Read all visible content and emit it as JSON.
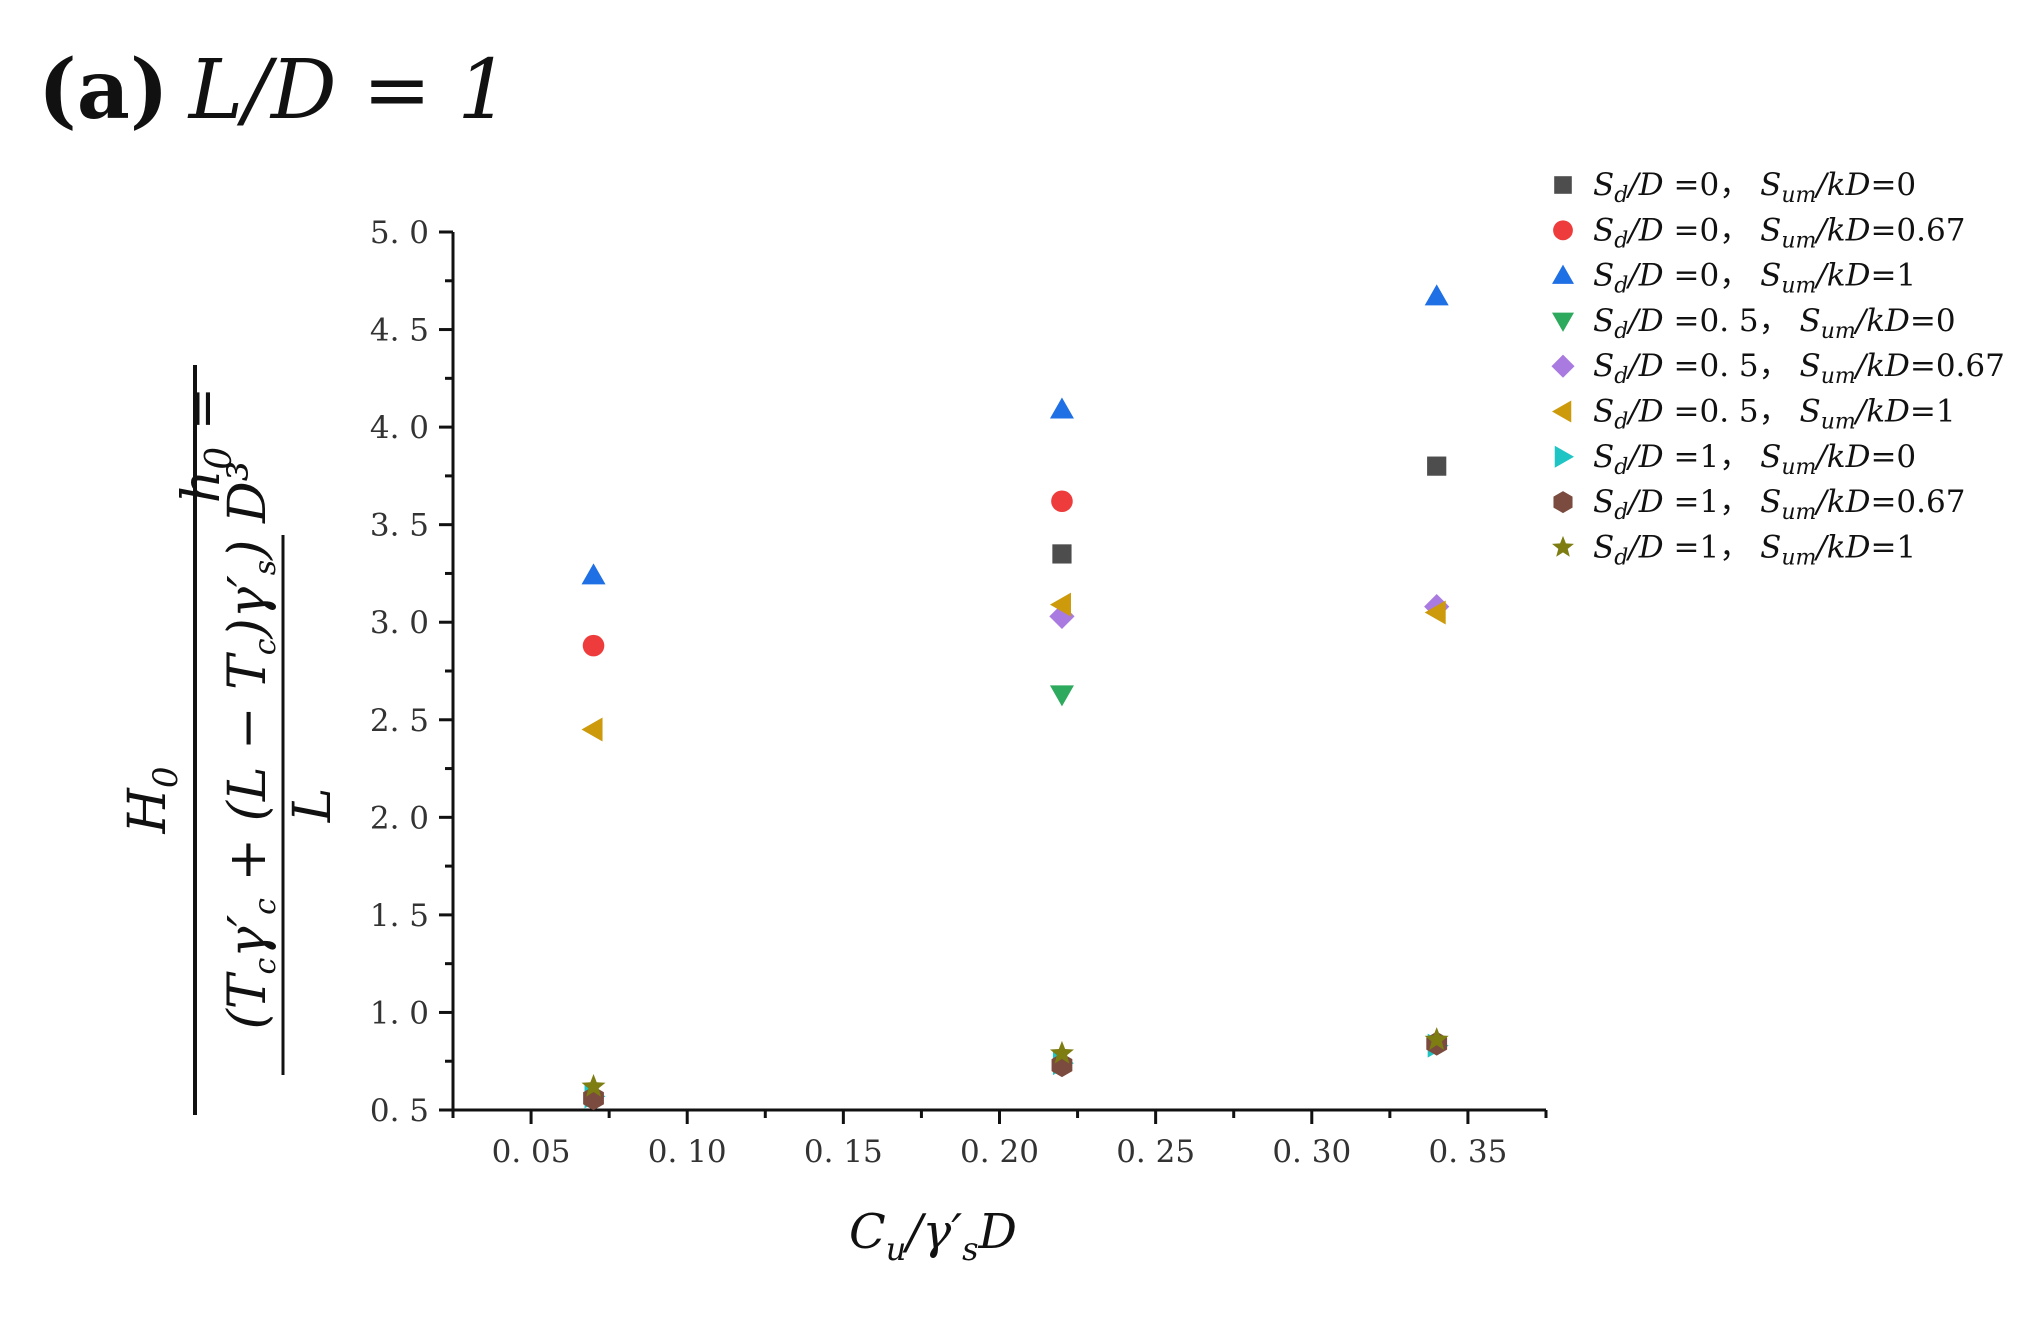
{
  "chart_data": {
    "type": "scatter",
    "title_prefix": "(a)",
    "title_math": "L/D = 1",
    "xlabel": "Cu/γs′D",
    "ylabel": "h0 = H0 / ((Tcγc′ + (L − Tc)γs′)/L) D³",
    "xlim": [
      0.025,
      0.375
    ],
    "ylim": [
      0.5,
      5.0
    ],
    "xticks": [
      0.05,
      0.1,
      0.15,
      0.2,
      0.25,
      0.3,
      0.35
    ],
    "xtick_labels": [
      "0. 05",
      "0. 10",
      "0. 15",
      "0. 20",
      "0. 25",
      "0. 30",
      "0. 35"
    ],
    "yticks": [
      0.5,
      1.0,
      1.5,
      2.0,
      2.5,
      3.0,
      3.5,
      4.0,
      4.5,
      5.0
    ],
    "ytick_labels": [
      "0. 5",
      "1. 0",
      "1. 5",
      "2. 0",
      "2. 5",
      "3. 0",
      "3. 5",
      "4. 0",
      "4. 5",
      "5. 0"
    ],
    "legend_position": "top-right",
    "series": [
      {
        "name": "Sd/D =0， Sum/kD=0",
        "sd": "=0，",
        "sum": "=0",
        "marker": "square",
        "color": "#4d4d4d",
        "x": [
          0.22,
          0.34
        ],
        "y": [
          3.35,
          3.8
        ]
      },
      {
        "name": "Sd/D =0， Sum/kD=0.67",
        "sd": "=0，",
        "sum": "=0.67",
        "marker": "circle",
        "color": "#ee3b3b",
        "x": [
          0.07,
          0.22
        ],
        "y": [
          2.88,
          3.62
        ]
      },
      {
        "name": "Sd/D =0， Sum/kD=1",
        "sd": "=0，",
        "sum": "=1",
        "marker": "triangle-up",
        "color": "#1f6fe5",
        "x": [
          0.07,
          0.22,
          0.34
        ],
        "y": [
          3.24,
          4.09,
          4.67
        ]
      },
      {
        "name": "Sd/D =0. 5， Sum/kD=0",
        "sd": "=0. 5，",
        "sum": "=0",
        "marker": "triangle-down",
        "color": "#2eaa5e",
        "x": [
          0.22
        ],
        "y": [
          2.63
        ]
      },
      {
        "name": "Sd/D =0. 5， Sum/kD=0.67",
        "sd": "=0. 5，",
        "sum": "=0.67",
        "marker": "diamond",
        "color": "#a97ae0",
        "x": [
          0.22,
          0.34
        ],
        "y": [
          3.03,
          3.08
        ]
      },
      {
        "name": "Sd/D =0. 5， Sum/kD=1",
        "sd": "=0. 5，",
        "sum": "=1",
        "marker": "triangle-left",
        "color": "#cc9a0a",
        "x": [
          0.07,
          0.22,
          0.34
        ],
        "y": [
          2.45,
          3.09,
          3.05
        ]
      },
      {
        "name": "Sd/D =1， Sum/kD=0",
        "sd": "=1，",
        "sum": "=0",
        "marker": "triangle-right",
        "color": "#1fc4c4",
        "x": [
          0.07,
          0.22,
          0.34
        ],
        "y": [
          0.57,
          0.74,
          0.83
        ]
      },
      {
        "name": "Sd/D =1， Sum/kD=0.67",
        "sd": "=1，",
        "sum": "=0.67",
        "marker": "hexagon",
        "color": "#7a4b3e",
        "x": [
          0.07,
          0.22,
          0.34
        ],
        "y": [
          0.56,
          0.73,
          0.84
        ]
      },
      {
        "name": "Sd/D =1， Sum/kD=1",
        "sd": "=1，",
        "sum": "=1",
        "marker": "star",
        "color": "#7d7d12",
        "x": [
          0.07,
          0.22,
          0.34
        ],
        "y": [
          0.62,
          0.79,
          0.86
        ]
      }
    ]
  }
}
